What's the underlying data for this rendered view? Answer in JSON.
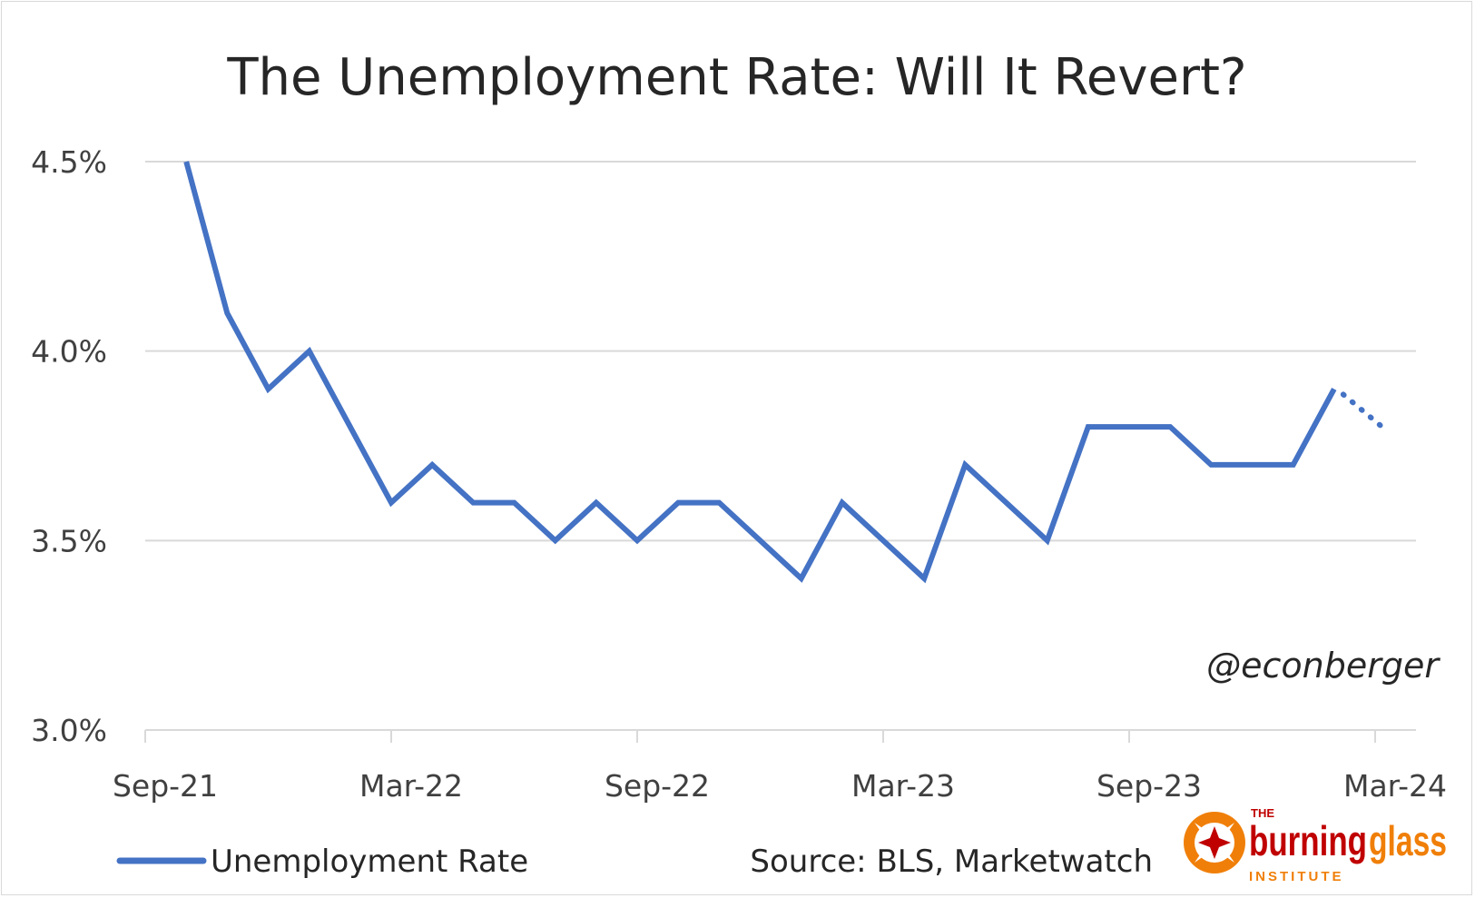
{
  "chart_data": {
    "type": "line",
    "title": "The Unemployment Rate: Will It Revert?",
    "xlabel": "",
    "ylabel": "",
    "ylim": [
      3.0,
      4.5
    ],
    "yticks": [
      "4.5%",
      "4.0%",
      "3.5%",
      "3.0%"
    ],
    "ytick_values": [
      4.5,
      4.0,
      3.5,
      3.0
    ],
    "xticks": [
      "Sep-21",
      "Mar-22",
      "Sep-22",
      "Mar-23",
      "Sep-23",
      "Mar-24"
    ],
    "xtick_months": [
      "2021-09",
      "2022-03",
      "2022-09",
      "2023-03",
      "2023-09",
      "2024-03"
    ],
    "grid": true,
    "legend_position": "bottom-left",
    "series": [
      {
        "name": "Unemployment Rate",
        "color": "#4472c4",
        "x": [
          "2021-10",
          "2021-11",
          "2021-12",
          "2022-01",
          "2022-02",
          "2022-03",
          "2022-04",
          "2022-05",
          "2022-06",
          "2022-07",
          "2022-08",
          "2022-09",
          "2022-10",
          "2022-11",
          "2022-12",
          "2023-01",
          "2023-02",
          "2023-03",
          "2023-04",
          "2023-05",
          "2023-06",
          "2023-07",
          "2023-08",
          "2023-09",
          "2023-10",
          "2023-11",
          "2023-12",
          "2024-01",
          "2024-02"
        ],
        "values": [
          4.5,
          4.1,
          3.9,
          4.0,
          3.8,
          3.6,
          3.7,
          3.6,
          3.6,
          3.5,
          3.6,
          3.5,
          3.6,
          3.6,
          3.5,
          3.4,
          3.6,
          3.5,
          3.4,
          3.7,
          3.6,
          3.5,
          3.8,
          3.8,
          3.8,
          3.7,
          3.7,
          3.7,
          3.9
        ]
      }
    ],
    "projection": {
      "style": "dotted",
      "x": [
        "2024-02",
        "2024-03"
      ],
      "values": [
        3.9,
        3.8
      ]
    }
  },
  "annotations": {
    "handle": "@econberger",
    "source": "Source: BLS, Marketwatch"
  },
  "logo": {
    "small_text": "THE",
    "word_left": "burning",
    "word_right": "glass",
    "sub_text": "INSTITUTE",
    "color_red": "#c00000",
    "color_orange": "#f07f09"
  }
}
